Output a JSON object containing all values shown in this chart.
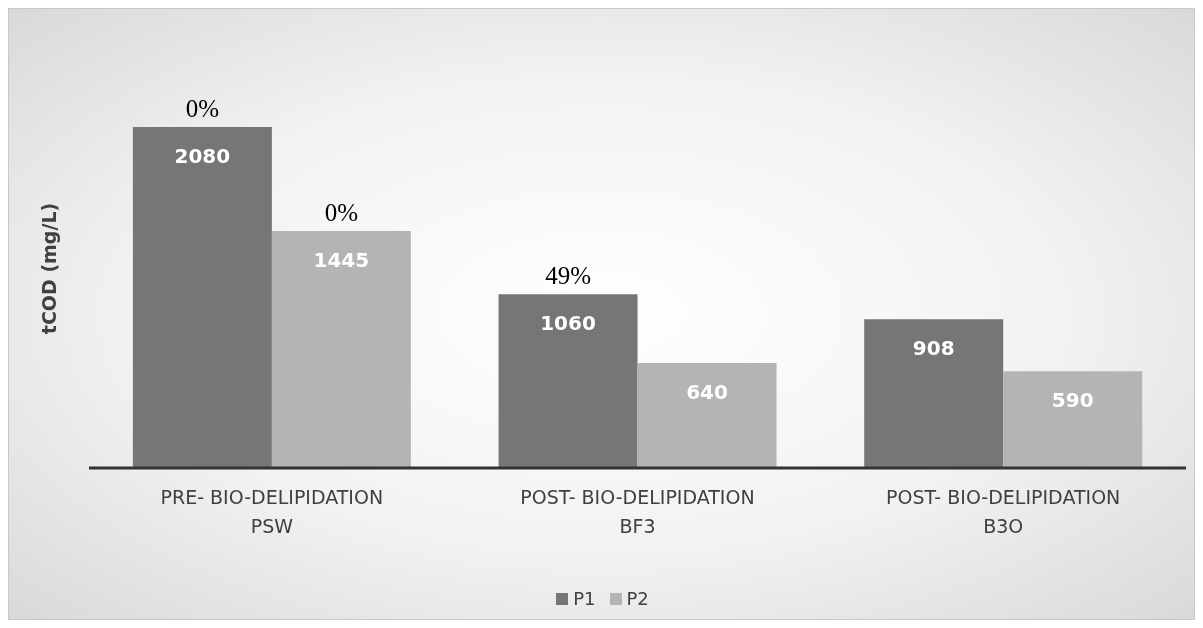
{
  "chart_data": {
    "type": "bar",
    "ylabel": "tCOD (mg/L)",
    "categories": [
      "PRE- BIO-DELIPIDATION\nPSW",
      "POST- BIO-DELIPIDATION\nBF3",
      "POST- BIO-DELIPIDATION\nB3O"
    ],
    "series": [
      {
        "name": "P1",
        "color": "#767676",
        "values": [
          2080,
          1060,
          908
        ]
      },
      {
        "name": "P2",
        "color": "#b4b4b4",
        "values": [
          1445,
          640,
          590
        ]
      }
    ],
    "data_labels": true,
    "legend": "bottom",
    "grid": false,
    "annotations": [
      {
        "text": "0%",
        "x": "PRE- BIO-DELIPIDATION\nPSW",
        "y": 2080
      },
      {
        "text": "0%",
        "x": "PRE- BIO-DELIPIDATION\nPSW",
        "y": 1445
      },
      {
        "text": "49%",
        "x": "POST- BIO-DELIPIDATION\nBF3",
        "y": 1060
      }
    ]
  }
}
